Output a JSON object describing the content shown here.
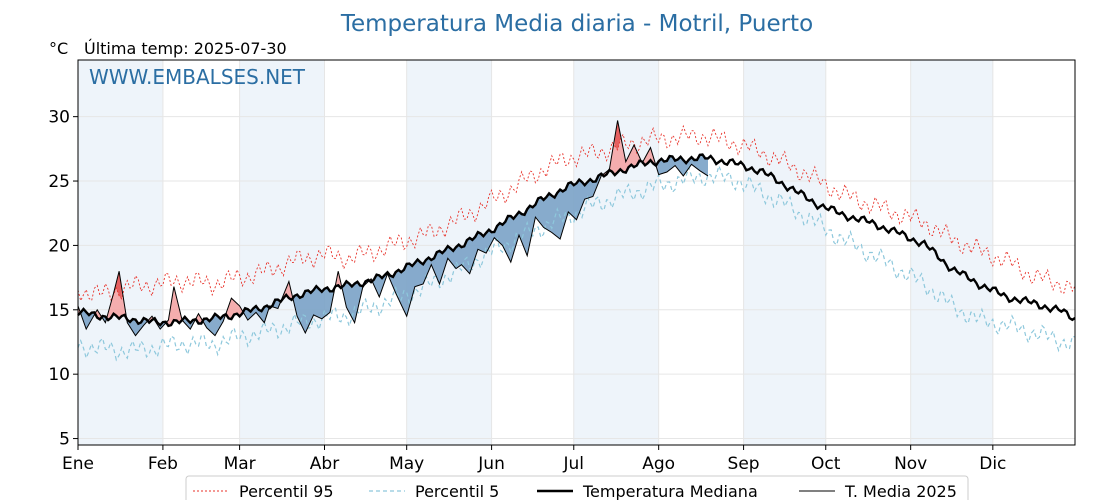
{
  "title": "Temperatura Media diaria - Motril, Puerto",
  "unit_label": "°C",
  "last_temp_label": "Última temp: 2025-07-30",
  "watermark": "WWW.EMBALSES.NET",
  "colors": {
    "title": "#2b6ea3",
    "p95": "#e8322a",
    "p5": "#8ec8dc",
    "median": "#000000",
    "mean2025": "#000000",
    "above_fill": "#f4a5a5",
    "above_fill_strong": "#e56060",
    "below_fill": "#7aa2c6",
    "month_band": "#eef4fa"
  },
  "chart_data": {
    "type": "line",
    "x_ticks": [
      "Ene",
      "Feb",
      "Mar",
      "Abr",
      "May",
      "Jun",
      "Jul",
      "Ago",
      "Sep",
      "Oct",
      "Nov",
      "Dic"
    ],
    "y_ticks": [
      5,
      10,
      15,
      20,
      25,
      30
    ],
    "ylim": [
      4.5,
      34.4
    ],
    "xlim": [
      1,
      365
    ],
    "grid": true,
    "legend_position": "bottom",
    "series": [
      {
        "name": "Percentil 95",
        "style": "dotted-red",
        "points": [
          [
            1,
            16.5
          ],
          [
            10,
            16.2
          ],
          [
            20,
            16.8
          ],
          [
            30,
            17.0
          ],
          [
            40,
            17.3
          ],
          [
            50,
            17.0
          ],
          [
            60,
            17.5
          ],
          [
            70,
            18.0
          ],
          [
            80,
            18.8
          ],
          [
            90,
            19.3
          ],
          [
            100,
            19.0
          ],
          [
            110,
            19.6
          ],
          [
            120,
            20.3
          ],
          [
            130,
            21.0
          ],
          [
            140,
            22.0
          ],
          [
            150,
            23.2
          ],
          [
            160,
            24.5
          ],
          [
            170,
            25.8
          ],
          [
            180,
            26.8
          ],
          [
            190,
            27.2
          ],
          [
            200,
            27.8
          ],
          [
            210,
            28.2
          ],
          [
            220,
            28.4
          ],
          [
            230,
            28.5
          ],
          [
            240,
            28.0
          ],
          [
            250,
            27.3
          ],
          [
            260,
            26.3
          ],
          [
            270,
            25.2
          ],
          [
            280,
            24.0
          ],
          [
            290,
            23.2
          ],
          [
            300,
            22.5
          ],
          [
            310,
            21.8
          ],
          [
            320,
            20.5
          ],
          [
            330,
            19.6
          ],
          [
            340,
            18.8
          ],
          [
            350,
            17.6
          ],
          [
            360,
            17.0
          ],
          [
            365,
            16.6
          ]
        ]
      },
      {
        "name": "Percentil 5",
        "style": "dashed-lightblue",
        "points": [
          [
            1,
            12.2
          ],
          [
            10,
            12.0
          ],
          [
            20,
            11.8
          ],
          [
            30,
            12.1
          ],
          [
            40,
            12.4
          ],
          [
            50,
            12.3
          ],
          [
            60,
            12.9
          ],
          [
            70,
            13.3
          ],
          [
            80,
            13.9
          ],
          [
            90,
            14.3
          ],
          [
            100,
            14.6
          ],
          [
            110,
            15.3
          ],
          [
            120,
            16.1
          ],
          [
            130,
            17.0
          ],
          [
            140,
            18.1
          ],
          [
            150,
            19.3
          ],
          [
            160,
            20.4
          ],
          [
            170,
            21.4
          ],
          [
            180,
            22.3
          ],
          [
            190,
            23.2
          ],
          [
            200,
            23.9
          ],
          [
            210,
            24.5
          ],
          [
            220,
            25.0
          ],
          [
            230,
            25.4
          ],
          [
            240,
            25.2
          ],
          [
            250,
            24.2
          ],
          [
            260,
            23.1
          ],
          [
            270,
            21.8
          ],
          [
            280,
            20.5
          ],
          [
            290,
            19.4
          ],
          [
            300,
            18.2
          ],
          [
            310,
            17.0
          ],
          [
            320,
            15.3
          ],
          [
            330,
            14.2
          ],
          [
            340,
            13.8
          ],
          [
            350,
            13.2
          ],
          [
            360,
            12.6
          ],
          [
            365,
            12.3
          ]
        ]
      },
      {
        "name": "Temperatura Mediana",
        "style": "thick-black",
        "points": [
          [
            1,
            14.8
          ],
          [
            10,
            14.5
          ],
          [
            20,
            14.3
          ],
          [
            30,
            14.0
          ],
          [
            40,
            14.1
          ],
          [
            50,
            14.3
          ],
          [
            60,
            14.7
          ],
          [
            70,
            15.3
          ],
          [
            80,
            16.1
          ],
          [
            90,
            16.6
          ],
          [
            100,
            16.9
          ],
          [
            110,
            17.4
          ],
          [
            120,
            18.2
          ],
          [
            130,
            19.1
          ],
          [
            140,
            20.0
          ],
          [
            150,
            21.0
          ],
          [
            160,
            22.2
          ],
          [
            170,
            23.5
          ],
          [
            180,
            24.6
          ],
          [
            190,
            25.2
          ],
          [
            200,
            25.9
          ],
          [
            210,
            26.5
          ],
          [
            220,
            26.7
          ],
          [
            230,
            26.8
          ],
          [
            240,
            26.4
          ],
          [
            250,
            25.8
          ],
          [
            260,
            24.6
          ],
          [
            270,
            23.3
          ],
          [
            280,
            22.4
          ],
          [
            290,
            21.8
          ],
          [
            300,
            21.0
          ],
          [
            310,
            20.1
          ],
          [
            320,
            18.2
          ],
          [
            330,
            17.0
          ],
          [
            340,
            16.0
          ],
          [
            350,
            15.5
          ],
          [
            360,
            14.9
          ],
          [
            365,
            14.3
          ]
        ]
      },
      {
        "name": "T. Media 2025",
        "style": "thin-black",
        "points": [
          [
            1,
            15.3
          ],
          [
            4,
            13.5
          ],
          [
            8,
            15.0
          ],
          [
            11,
            14.0
          ],
          [
            14,
            16.3
          ],
          [
            16,
            18.0
          ],
          [
            19,
            14.0
          ],
          [
            22,
            13.0
          ],
          [
            25,
            13.8
          ],
          [
            28,
            14.5
          ],
          [
            31,
            13.5
          ],
          [
            34,
            14.2
          ],
          [
            36,
            16.8
          ],
          [
            39,
            14.2
          ],
          [
            42,
            13.5
          ],
          [
            45,
            14.7
          ],
          [
            48,
            13.6
          ],
          [
            51,
            13.0
          ],
          [
            54,
            14.1
          ],
          [
            57,
            15.9
          ],
          [
            60,
            15.3
          ],
          [
            63,
            14.2
          ],
          [
            66,
            14.8
          ],
          [
            69,
            14.0
          ],
          [
            71,
            15.3
          ],
          [
            74,
            15.1
          ],
          [
            78,
            17.2
          ],
          [
            81,
            14.5
          ],
          [
            84,
            13.2
          ],
          [
            87,
            14.6
          ],
          [
            90,
            14.3
          ],
          [
            93,
            14.8
          ],
          [
            96,
            18.0
          ],
          [
            99,
            15.2
          ],
          [
            102,
            14.0
          ],
          [
            105,
            16.8
          ],
          [
            108,
            17.4
          ],
          [
            111,
            16.0
          ],
          [
            114,
            17.8
          ],
          [
            117,
            16.3
          ],
          [
            121,
            14.5
          ],
          [
            124,
            16.8
          ],
          [
            127,
            17.0
          ],
          [
            130,
            18.5
          ],
          [
            133,
            17.0
          ],
          [
            136,
            19.0
          ],
          [
            139,
            18.2
          ],
          [
            141,
            18.5
          ],
          [
            144,
            17.8
          ],
          [
            147,
            19.7
          ],
          [
            150,
            19.4
          ],
          [
            153,
            20.6
          ],
          [
            156,
            20.0
          ],
          [
            159,
            18.7
          ],
          [
            162,
            20.8
          ],
          [
            165,
            19.2
          ],
          [
            168,
            22.2
          ],
          [
            171,
            21.4
          ],
          [
            174,
            21.0
          ],
          [
            177,
            20.5
          ],
          [
            180,
            22.6
          ],
          [
            183,
            22.0
          ],
          [
            186,
            23.6
          ],
          [
            189,
            23.8
          ],
          [
            192,
            25.4
          ],
          [
            195,
            25.9
          ],
          [
            198,
            29.7
          ],
          [
            201,
            26.5
          ],
          [
            204,
            27.8
          ],
          [
            207,
            26.4
          ],
          [
            210,
            27.6
          ],
          [
            213,
            25.5
          ],
          [
            216,
            25.7
          ],
          [
            219,
            26.2
          ],
          [
            222,
            25.4
          ],
          [
            225,
            26.3
          ],
          [
            228,
            25.8
          ],
          [
            231,
            25.4
          ]
        ]
      }
    ]
  },
  "legend": [
    {
      "label": "Percentil 95",
      "style": "dotted-red"
    },
    {
      "label": "Percentil 5",
      "style": "dashed-lightblue"
    },
    {
      "label": "Temperatura Mediana",
      "style": "thick-black"
    },
    {
      "label": "T. Media 2025",
      "style": "thin-black"
    }
  ]
}
